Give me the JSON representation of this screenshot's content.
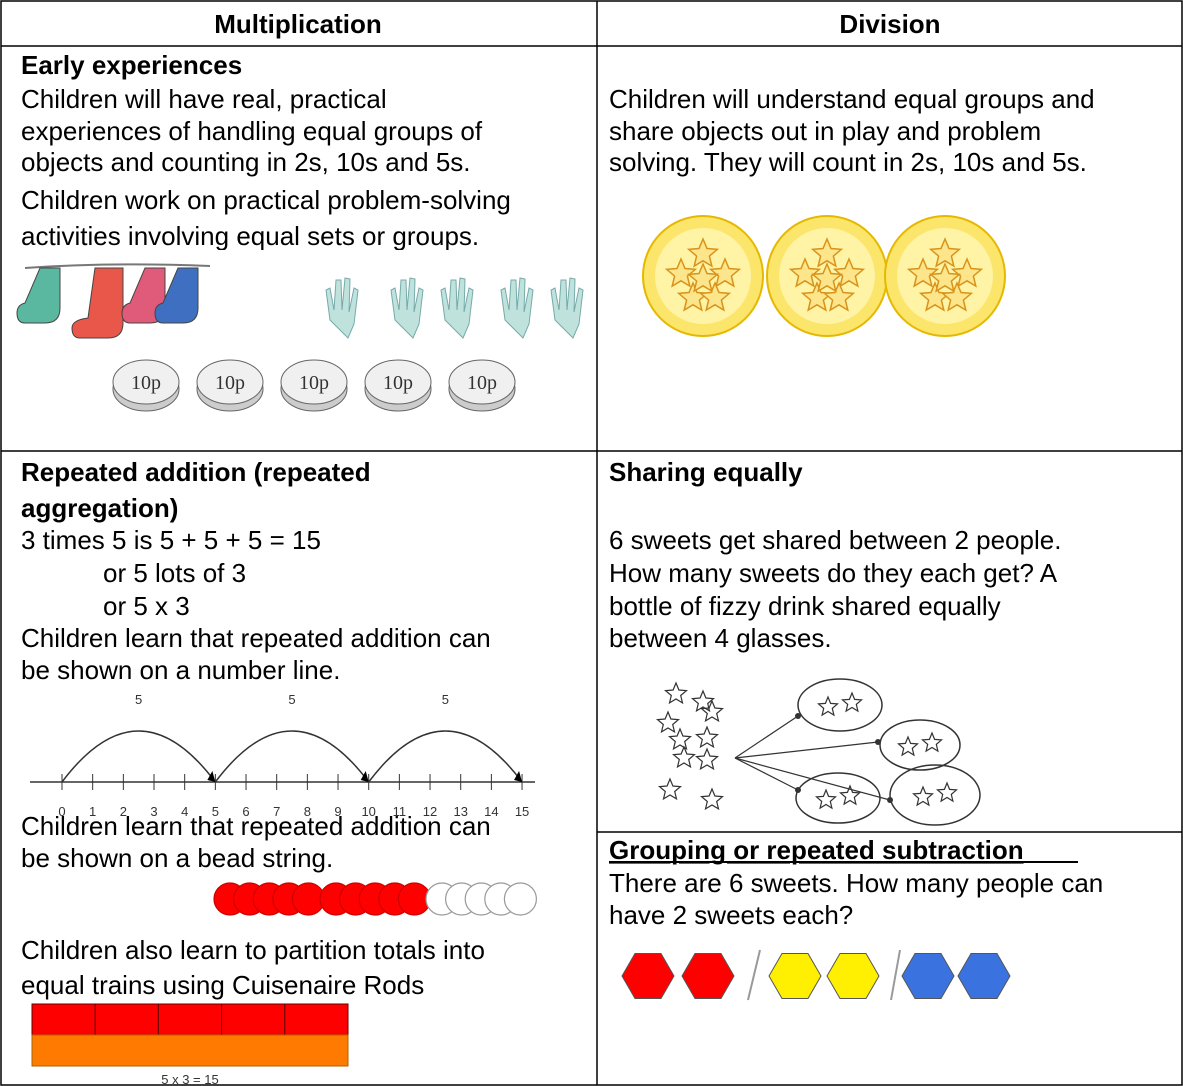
{
  "headers": [
    "Multiplication",
    "Division"
  ],
  "early": {
    "heading": "Early experiences",
    "multiplication_lines": [
      "Children will have real, practical",
      "experiences of handling equal groups of",
      "objects and counting in 2s, 10s and 5s.",
      "Children work on practical problem-solving",
      "activities involving equal sets or groups."
    ],
    "coin_labels": [
      "10p",
      "10p",
      "10p",
      "10p",
      "10p"
    ],
    "division_lines": [
      "Children will understand equal groups and",
      "share objects out in play and problem",
      "solving. They will count in 2s, 10s and 5s."
    ]
  },
  "repeated_addition": {
    "heading_lines": [
      "Repeated addition (repeated",
      "aggregation)"
    ],
    "example_lines": [
      "3 times 5 is 5 + 5 + 5 = 15",
      "or 5 lots of 3",
      "or 5 x 3"
    ],
    "number_line_lines": [
      "Children learn that repeated addition can",
      "be shown on a number line."
    ],
    "arc_labels": [
      5,
      5,
      5
    ],
    "tick_labels": [
      0,
      1,
      2,
      3,
      4,
      5,
      6,
      7,
      8,
      9,
      10,
      11,
      12,
      13,
      14,
      15
    ],
    "bead_lines": [
      "Children learn that repeated addition can",
      "be shown on a bead string."
    ],
    "rod_lines": [
      "Children also learn to partition totals into",
      "equal trains using Cuisenaire Rods"
    ],
    "rod_caption": "5 x 3 = 15"
  },
  "sharing": {
    "heading": "Sharing equally",
    "lines": [
      "6 sweets get shared between 2 people.",
      "How many sweets do they each get? A",
      "bottle of fizzy drink shared equally",
      "between 4 glasses."
    ]
  },
  "grouping": {
    "heading": "Grouping or repeated subtraction",
    "lines": [
      "There are 6 sweets. How many people can",
      "have 2 sweets each?"
    ]
  }
}
